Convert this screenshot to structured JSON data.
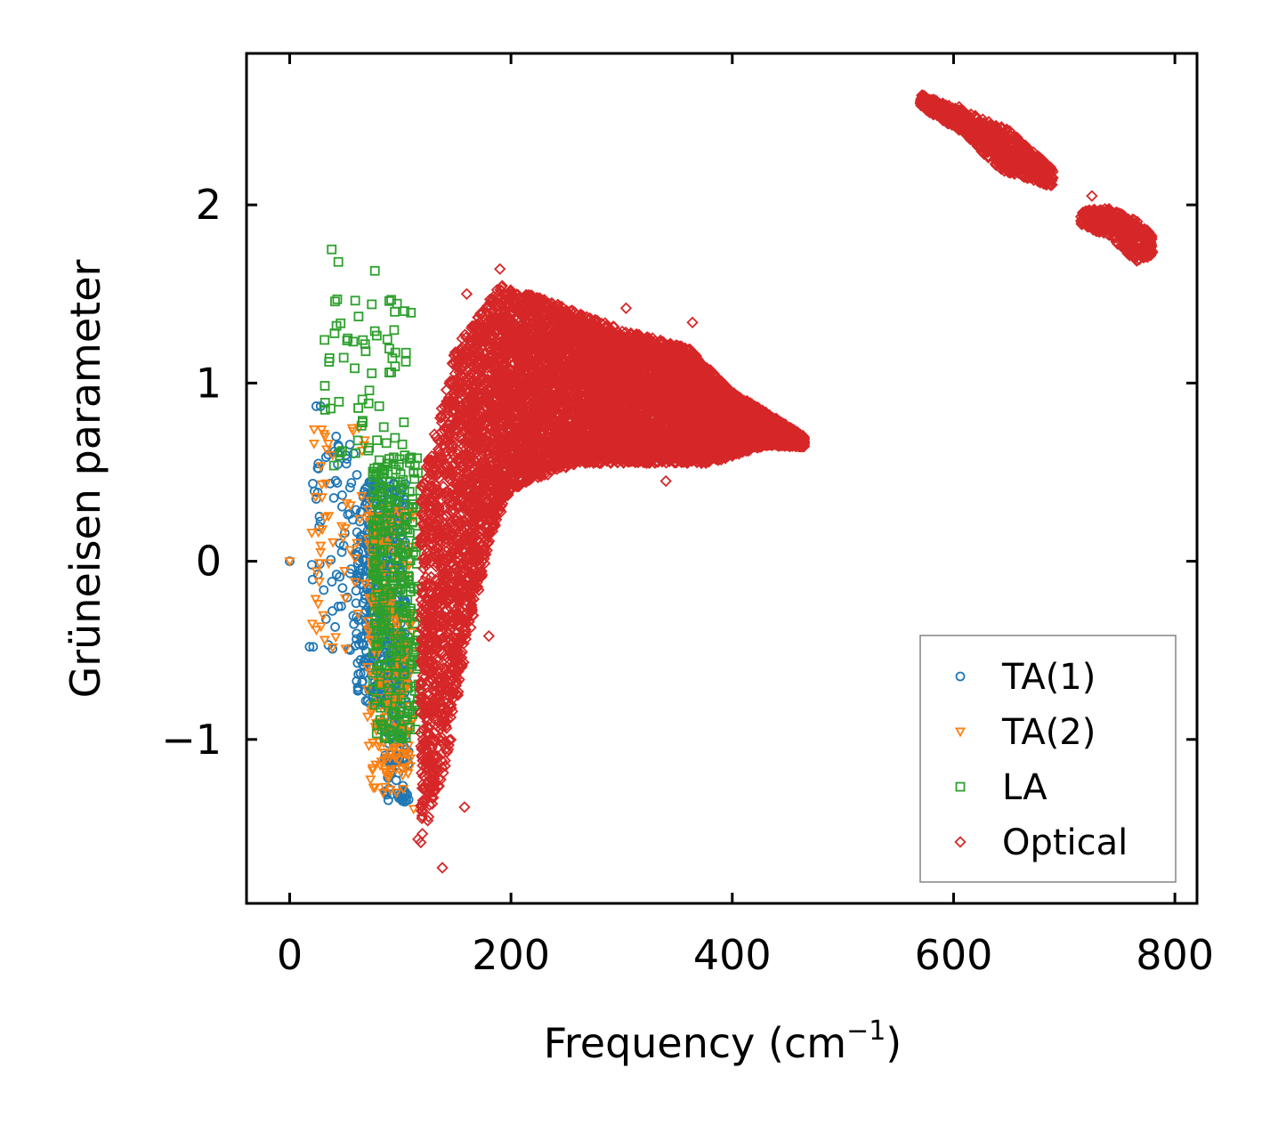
{
  "chart_data": {
    "type": "scatter",
    "title": "",
    "xlabel": "Frequency (cm",
    "xlabel_sup": "−1",
    "xlabel_close": ")",
    "ylabel": "Grüneisen parameter",
    "xlim": [
      -39,
      820
    ],
    "ylim": [
      -1.92,
      2.85
    ],
    "xticks": [
      0,
      200,
      400,
      600,
      800
    ],
    "xtick_labels": [
      "0",
      "200",
      "400",
      "600",
      "800"
    ],
    "yticks": [
      -1,
      0,
      1,
      2
    ],
    "ytick_labels": [
      "−1",
      "0",
      "1",
      "2"
    ],
    "grid": false,
    "legend_position": "lower-right",
    "series": [
      {
        "name": "TA(1)",
        "marker": "circle",
        "color": "#1f77b4",
        "regions": [
          {
            "x_range": [
              20,
              80
            ],
            "y_range": [
              -0.5,
              0.7
            ],
            "count": 90
          },
          {
            "x_range": [
              60,
              105
            ],
            "y_range": [
              -0.8,
              0.45
            ],
            "count": 420
          },
          {
            "x_range": [
              85,
              108
            ],
            "y_range": [
              -1.35,
              -0.4
            ],
            "count": 140
          }
        ],
        "points": [
          {
            "x": 0,
            "y": 0.0
          },
          {
            "x": 18,
            "y": -0.48
          },
          {
            "x": 20,
            "y": -0.02
          },
          {
            "x": 24,
            "y": 0.35
          },
          {
            "x": 26,
            "y": 0.52
          },
          {
            "x": 24,
            "y": 0.87
          },
          {
            "x": 35,
            "y": -0.47
          },
          {
            "x": 42,
            "y": 0.7
          },
          {
            "x": 28,
            "y": 0.87
          },
          {
            "x": 104,
            "y": -1.35
          },
          {
            "x": 102,
            "y": -1.3
          }
        ]
      },
      {
        "name": "TA(2)",
        "marker": "triangle_down",
        "color": "#ff7f0e",
        "regions": [
          {
            "x_range": [
              20,
              80
            ],
            "y_range": [
              -0.5,
              0.75
            ],
            "count": 60
          },
          {
            "x_range": [
              70,
              112
            ],
            "y_range": [
              -1.3,
              0.3
            ],
            "count": 260
          }
        ],
        "points": [
          {
            "x": 0,
            "y": 0.0
          },
          {
            "x": 22,
            "y": 0.74
          },
          {
            "x": 22,
            "y": 0.66
          },
          {
            "x": 20,
            "y": 0.16
          },
          {
            "x": 112,
            "y": -1.39
          }
        ]
      },
      {
        "name": "LA",
        "marker": "square",
        "color": "#2ca02c",
        "regions": [
          {
            "x_range": [
              30,
              110
            ],
            "y_range": [
              0.5,
              1.5
            ],
            "count": 60
          },
          {
            "x_range": [
              75,
              118
            ],
            "y_range": [
              -1.0,
              0.6
            ],
            "count": 320
          }
        ],
        "points": [
          {
            "x": 38,
            "y": 1.75
          },
          {
            "x": 44,
            "y": 1.68
          },
          {
            "x": 77,
            "y": 1.63
          },
          {
            "x": 43,
            "y": 1.47
          },
          {
            "x": 36,
            "y": 1.14
          },
          {
            "x": 32,
            "y": 0.89
          },
          {
            "x": 32,
            "y": 0.85
          },
          {
            "x": 90,
            "y": 1.46
          },
          {
            "x": 95,
            "y": 1.4
          },
          {
            "x": 62,
            "y": 0.86
          },
          {
            "x": 105,
            "y": 1.12
          }
        ]
      },
      {
        "name": "Optical",
        "marker": "diamond",
        "color": "#d62728",
        "regions": [
          {
            "band": "main",
            "x_range": [
              118,
              465
            ],
            "upper": [
              [
                118,
                0.4
              ],
              [
                150,
                1.2
              ],
              [
                190,
                1.55
              ],
              [
                240,
                1.45
              ],
              [
                300,
                1.3
              ],
              [
                360,
                1.2
              ],
              [
                400,
                0.95
              ],
              [
                440,
                0.8
              ],
              [
                465,
                0.7
              ]
            ],
            "lower": [
              [
                118,
                -1.6
              ],
              [
                140,
                -1.2
              ],
              [
                160,
                -0.5
              ],
              [
                180,
                0.1
              ],
              [
                200,
                0.4
              ],
              [
                260,
                0.55
              ],
              [
                320,
                0.55
              ],
              [
                380,
                0.55
              ],
              [
                430,
                0.65
              ],
              [
                465,
                0.64
              ]
            ],
            "count": 9000
          },
          {
            "band": "upper-1",
            "x_range": [
              570,
              690
            ],
            "upper": [
              [
                570,
                2.62
              ],
              [
                620,
                2.5
              ],
              [
                650,
                2.42
              ],
              [
                690,
                2.2
              ]
            ],
            "lower": [
              [
                570,
                2.55
              ],
              [
                610,
                2.4
              ],
              [
                640,
                2.2
              ],
              [
                690,
                2.1
              ]
            ],
            "count": 900
          },
          {
            "band": "upper-2",
            "x_range": [
              715,
              780
            ],
            "upper": [
              [
                715,
                1.97
              ],
              [
                740,
                1.98
              ],
              [
                770,
                1.9
              ],
              [
                780,
                1.82
              ]
            ],
            "lower": [
              [
                715,
                1.88
              ],
              [
                740,
                1.83
              ],
              [
                765,
                1.68
              ],
              [
                780,
                1.72
              ]
            ],
            "count": 450
          }
        ],
        "points": [
          {
            "x": 190,
            "y": 1.64
          },
          {
            "x": 160,
            "y": 1.5
          },
          {
            "x": 364,
            "y": 1.34
          },
          {
            "x": 304,
            "y": 1.42
          },
          {
            "x": 138,
            "y": -1.72
          },
          {
            "x": 116,
            "y": -1.56
          },
          {
            "x": 158,
            "y": -1.38
          },
          {
            "x": 180,
            "y": -0.42
          },
          {
            "x": 340,
            "y": 0.45
          },
          {
            "x": 605,
            "y": 2.55
          },
          {
            "x": 725,
            "y": 2.05
          }
        ]
      }
    ]
  },
  "legend": {
    "items": [
      {
        "label": "TA(1)",
        "marker": "circle",
        "color": "#1f77b4"
      },
      {
        "label": "TA(2)",
        "marker": "triangle_down",
        "color": "#ff7f0e"
      },
      {
        "label": "LA",
        "marker": "square",
        "color": "#2ca02c"
      },
      {
        "label": "Optical",
        "marker": "diamond",
        "color": "#d62728"
      }
    ]
  }
}
